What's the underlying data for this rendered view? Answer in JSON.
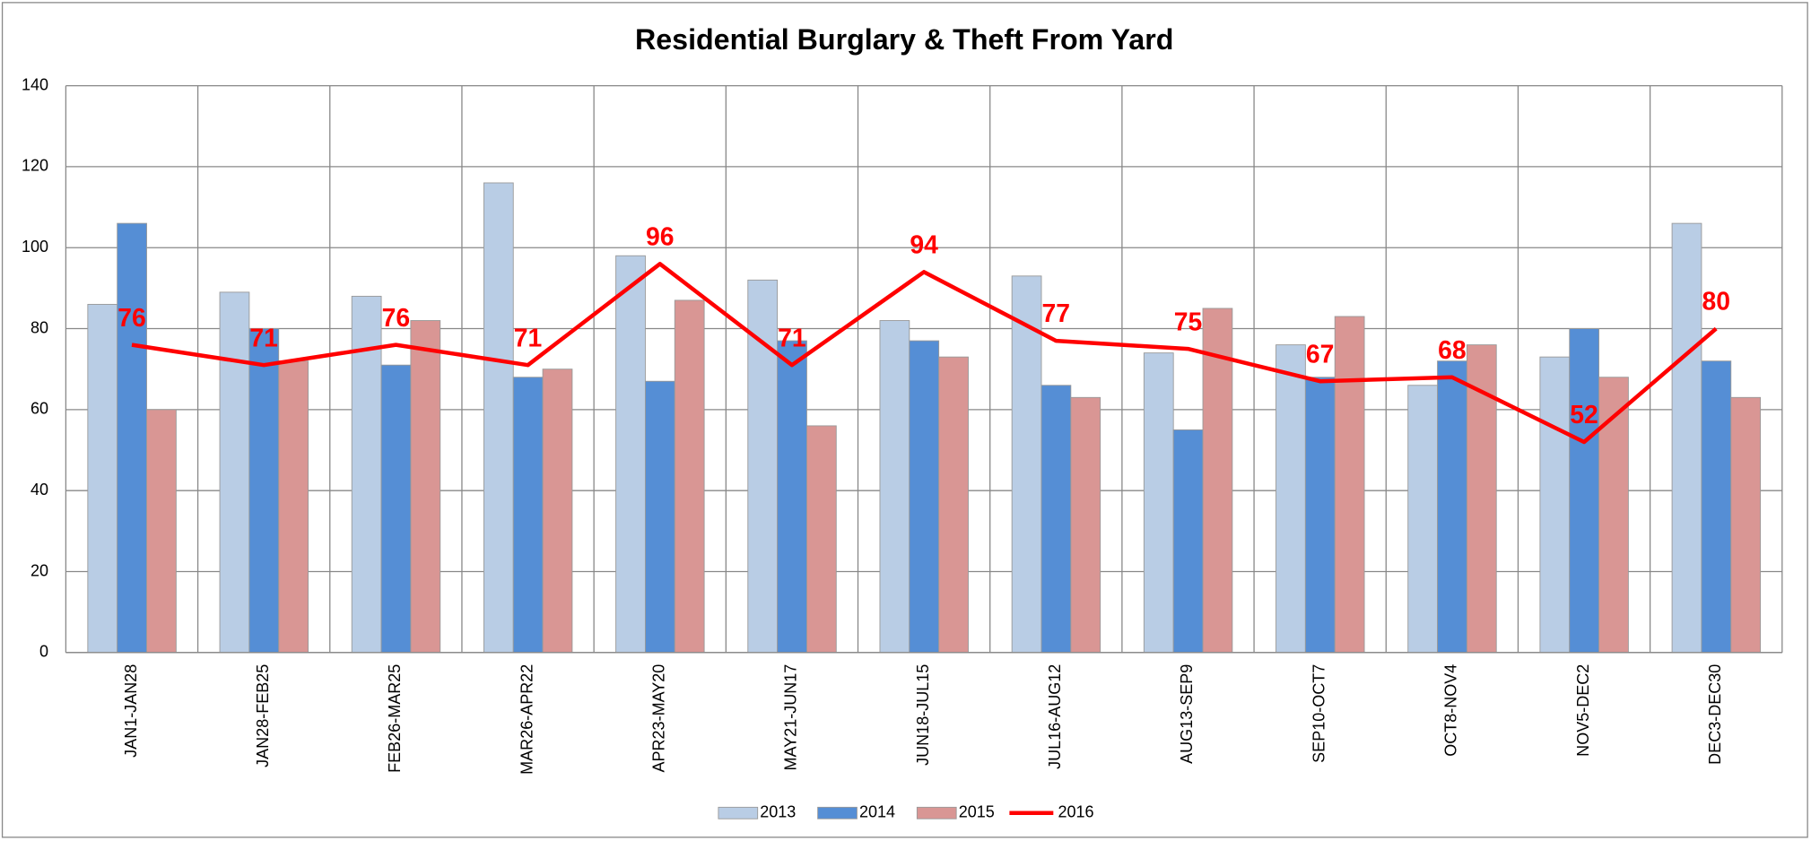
{
  "chart_data": {
    "type": "bar",
    "title": "Residential Burglary & Theft From Yard",
    "categories": [
      "JAN1-JAN28",
      "JAN28-FEB25",
      "FEB26-MAR25",
      "MAR26-APR22",
      "APR23-MAY20",
      "MAY21-JUN17",
      "JUN18-JUL15",
      "JUL16-AUG12",
      "AUG13-SEP9",
      "SEP10-OCT7",
      "OCT8-NOV4",
      "NOV5-DEC2",
      "DEC3-DEC30"
    ],
    "series": [
      {
        "name": "2013",
        "type": "bar",
        "color": "#b9cde5",
        "values": [
          86,
          89,
          88,
          116,
          98,
          92,
          82,
          93,
          74,
          76,
          66,
          73,
          106
        ]
      },
      {
        "name": "2014",
        "type": "bar",
        "color": "#558ed5",
        "values": [
          106,
          80,
          71,
          68,
          67,
          77,
          77,
          66,
          55,
          68,
          72,
          80,
          72
        ]
      },
      {
        "name": "2015",
        "type": "bar",
        "color": "#d99694",
        "values": [
          60,
          72,
          82,
          70,
          87,
          56,
          73,
          63,
          85,
          83,
          76,
          68,
          63
        ]
      },
      {
        "name": "2016",
        "type": "line",
        "color": "#ff0000",
        "values": [
          76,
          71,
          76,
          71,
          96,
          71,
          94,
          77,
          75,
          67,
          68,
          52,
          80
        ],
        "data_labels": true
      }
    ],
    "ylim": [
      0,
      140
    ],
    "yticks": [
      0,
      20,
      40,
      60,
      80,
      100,
      120,
      140
    ],
    "grid": true,
    "legend": "bottom"
  }
}
